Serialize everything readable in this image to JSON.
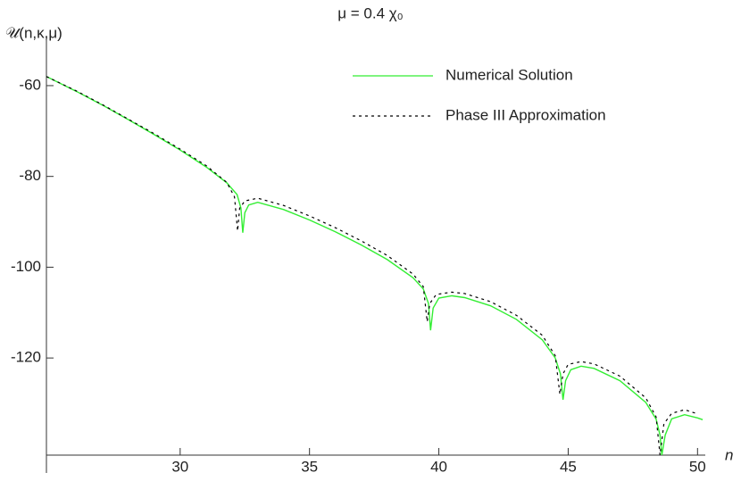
{
  "chart_data": {
    "type": "line",
    "title": "μ = 0.4 χ₀",
    "y_label": "𝒰(n,κ,μ)",
    "x_label": "n",
    "xlim": [
      24.83,
      50.3
    ],
    "ylim": [
      -141.4,
      -49
    ],
    "xticks": [
      30,
      35,
      40,
      45,
      50
    ],
    "yticks": [
      -60,
      -80,
      -100,
      -120
    ],
    "legend": "top-right",
    "series": [
      {
        "name": "Numerical Solution",
        "color": "#33ee33",
        "dash": "solid",
        "x": [
          24.83,
          26,
          27,
          28,
          29,
          30,
          31,
          31.8,
          32.2,
          32.35,
          32.42,
          32.5,
          32.65,
          33,
          34,
          35,
          36,
          37,
          38,
          39,
          39.4,
          39.6,
          39.68,
          39.78,
          40,
          40.5,
          41,
          42,
          43,
          44,
          44.5,
          44.7,
          44.8,
          44.9,
          45.1,
          45.5,
          46,
          47,
          48,
          48.4,
          48.55,
          48.62,
          48.75,
          49,
          49.5,
          50,
          50.2
        ],
        "values": [
          -58,
          -61.3,
          -64.3,
          -67.5,
          -70.8,
          -74.2,
          -77.9,
          -81.4,
          -84,
          -87,
          -92.4,
          -88,
          -86.3,
          -85.7,
          -87.3,
          -89.6,
          -92.2,
          -95.1,
          -98.3,
          -102.3,
          -104.8,
          -108,
          -113.9,
          -109,
          -106.8,
          -106.3,
          -106.7,
          -108.5,
          -111.5,
          -116,
          -120,
          -123.5,
          -129.2,
          -125,
          -122.6,
          -121.8,
          -122.3,
          -125,
          -129.8,
          -133.5,
          -137,
          -141.4,
          -137,
          -133.4,
          -132.5,
          -133.2,
          -133.6
        ]
      },
      {
        "name": "Phase III Approximation",
        "color": "#000000",
        "dash": "dotted",
        "x": [
          24.83,
          26,
          27,
          28,
          29,
          30,
          31,
          31.8,
          32.1,
          32.22,
          32.3,
          32.5,
          33,
          34,
          35,
          36,
          37,
          38,
          39,
          39.4,
          39.55,
          39.65,
          39.9,
          40.5,
          41,
          42,
          43,
          44,
          44.5,
          44.68,
          44.8,
          45,
          45.5,
          46,
          47,
          48,
          48.4,
          48.55,
          48.7,
          49,
          49.5,
          50
        ],
        "values": [
          -58,
          -61.2,
          -64.2,
          -67.4,
          -70.6,
          -74,
          -77.6,
          -81.3,
          -84.5,
          -92,
          -87,
          -85.4,
          -84.8,
          -86.4,
          -88.7,
          -91.3,
          -94.2,
          -97.4,
          -101.5,
          -104.3,
          -112,
          -108,
          -106,
          -105.5,
          -105.8,
          -107.6,
          -110.6,
          -115,
          -119.5,
          -128,
          -123.5,
          -121.4,
          -120.8,
          -121.3,
          -124,
          -128.8,
          -133,
          -141.4,
          -134.5,
          -132.2,
          -131.4,
          -132.3
        ]
      }
    ]
  }
}
